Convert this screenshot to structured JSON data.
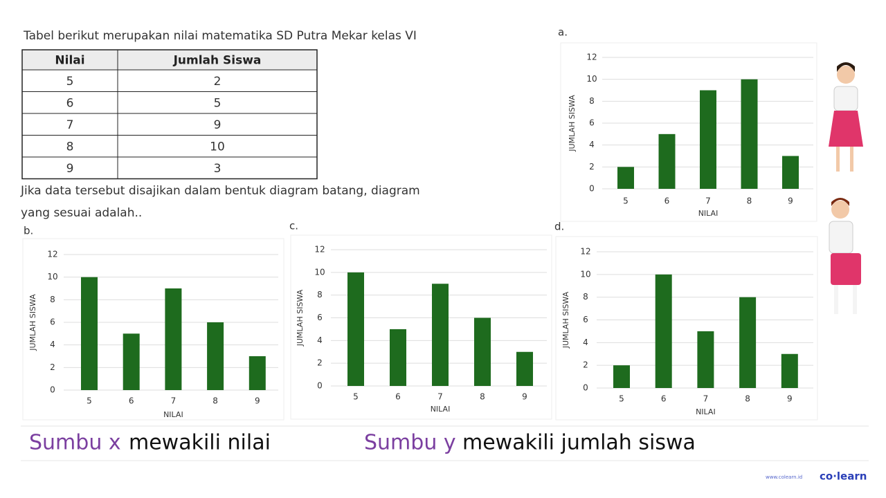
{
  "header": {
    "title": "Tabel berikut merupakan nilai matematika SD Putra Mekar kelas VI"
  },
  "table": {
    "columns": [
      "Nilai",
      "Jumlah Siswa"
    ],
    "rows": [
      [
        5,
        2
      ],
      [
        6,
        5
      ],
      [
        7,
        9
      ],
      [
        8,
        10
      ],
      [
        9,
        3
      ]
    ]
  },
  "question": "Jika data tersebut disajikan dalam bentuk diagram batang, diagram yang sesuai adalah..",
  "chart_data": [
    {
      "type": "bar",
      "label": "a.",
      "xlabel": "NILAI",
      "ylabel": "JUMLAH SISWA",
      "categories": [
        "5",
        "6",
        "7",
        "8",
        "9"
      ],
      "values": [
        2,
        5,
        9,
        10,
        3
      ],
      "color": "#1e6b1e",
      "ylim": [
        0,
        12
      ],
      "yticks": [
        0,
        2,
        4,
        6,
        8,
        10,
        12
      ],
      "grid": true
    },
    {
      "type": "bar",
      "label": "b.",
      "xlabel": "NILAI",
      "ylabel": "JUMLAH SISWA",
      "categories": [
        "5",
        "6",
        "7",
        "8",
        "9"
      ],
      "values": [
        10,
        5,
        9,
        6,
        3
      ],
      "color": "#1e6b1e",
      "ylim": [
        0,
        12
      ],
      "yticks": [
        0,
        2,
        4,
        6,
        8,
        10,
        12
      ],
      "grid": true
    },
    {
      "type": "bar",
      "label": "c.",
      "xlabel": "NILAI",
      "ylabel": "JUMLAH SISWA",
      "categories": [
        "5",
        "6",
        "7",
        "8",
        "9"
      ],
      "values": [
        10,
        5,
        9,
        6,
        3
      ],
      "color": "#1e6b1e",
      "ylim": [
        0,
        12
      ],
      "yticks": [
        0,
        2,
        4,
        6,
        8,
        10,
        12
      ],
      "grid": true
    },
    {
      "type": "bar",
      "label": "d.",
      "xlabel": "NILAI",
      "ylabel": "JUMLAH SISWA",
      "categories": [
        "5",
        "6",
        "7",
        "8",
        "9"
      ],
      "values": [
        2,
        10,
        5,
        8,
        3
      ],
      "color": "#1e6b1e",
      "ylim": [
        0,
        12
      ],
      "yticks": [
        0,
        2,
        4,
        6,
        8,
        10,
        12
      ],
      "grid": true
    }
  ],
  "notes": [
    {
      "term": "Sumbu x",
      "text": "mewakili nilai"
    },
    {
      "term": "Sumbu y",
      "text": "mewakili jumlah siswa"
    }
  ],
  "footer": {
    "url": "www.colearn.id",
    "brand": "co·learn"
  }
}
